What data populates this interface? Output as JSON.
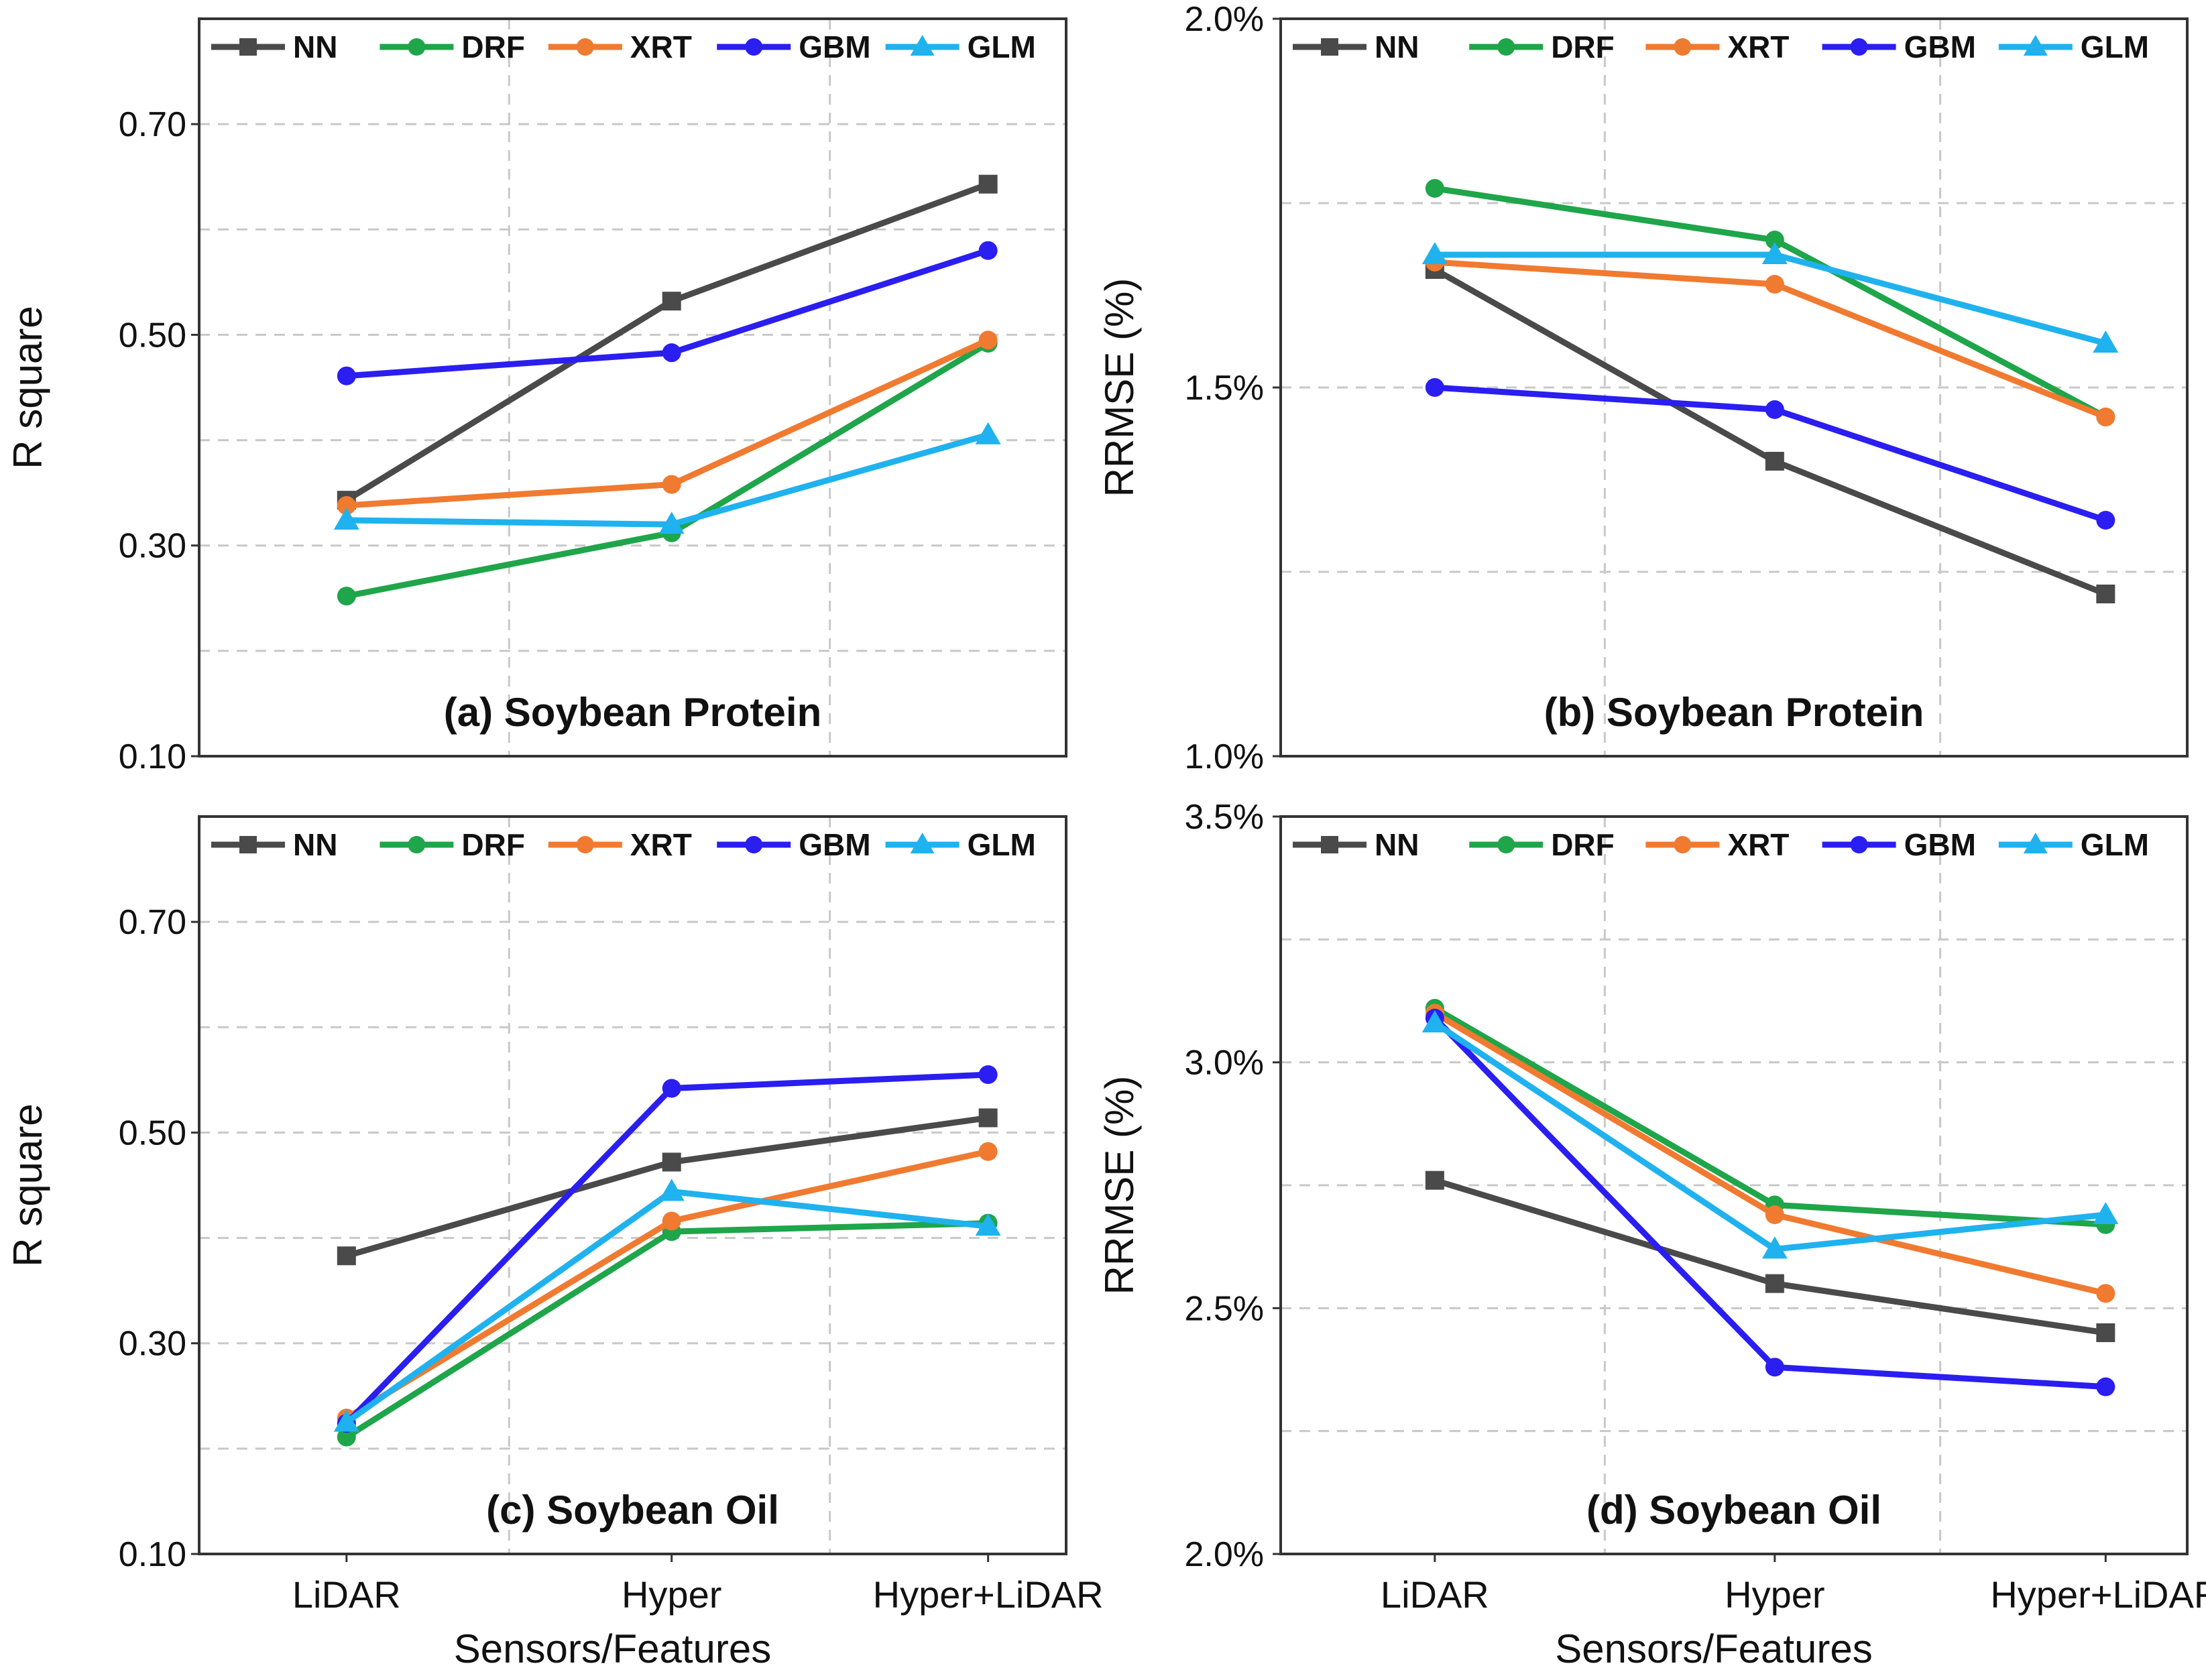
{
  "chart_data": [
    {
      "type": "line",
      "title": "(a) Soybean Protein",
      "xlabel": "",
      "ylabel": "R square",
      "categories": [
        "LiDAR",
        "Hyper",
        "Hyper+LiDAR"
      ],
      "ylim": [
        0.1,
        0.8
      ],
      "yticks": [
        "0.10",
        "0.30",
        "0.50",
        "0.70"
      ],
      "ytick_values": [
        0.1,
        0.3,
        0.5,
        0.7
      ],
      "grid": true,
      "legend": "top",
      "series": [
        {
          "name": "NN",
          "values": [
            0.343,
            0.532,
            0.643
          ]
        },
        {
          "name": "DRF",
          "values": [
            0.252,
            0.312,
            0.492
          ]
        },
        {
          "name": "XRT",
          "values": [
            0.338,
            0.358,
            0.495
          ]
        },
        {
          "name": "GBM",
          "values": [
            0.461,
            0.483,
            0.58
          ]
        },
        {
          "name": "GLM",
          "values": [
            0.324,
            0.32,
            0.405
          ]
        }
      ]
    },
    {
      "type": "line",
      "title": "(b) Soybean Protein",
      "xlabel": "",
      "ylabel": "RRMSE (%)",
      "categories": [
        "LiDAR",
        "Hyper",
        "Hyper+LiDAR"
      ],
      "ylim": [
        1.0,
        2.0
      ],
      "yticks": [
        "1.0%",
        "1.5%",
        "2.0%"
      ],
      "ytick_values": [
        1.0,
        1.5,
        2.0
      ],
      "grid": true,
      "legend": "top",
      "series": [
        {
          "name": "NN",
          "values": [
            1.66,
            1.4,
            1.22
          ]
        },
        {
          "name": "DRF",
          "values": [
            1.77,
            1.7,
            1.46
          ]
        },
        {
          "name": "XRT",
          "values": [
            1.67,
            1.64,
            1.46
          ]
        },
        {
          "name": "GBM",
          "values": [
            1.5,
            1.47,
            1.32
          ]
        },
        {
          "name": "GLM",
          "values": [
            1.68,
            1.68,
            1.56
          ]
        }
      ]
    },
    {
      "type": "line",
      "title": "(c) Soybean Oil",
      "xlabel": "Sensors/Features",
      "ylabel": "R square",
      "categories": [
        "LiDAR",
        "Hyper",
        "Hyper+LiDAR"
      ],
      "ylim": [
        0.1,
        0.8
      ],
      "yticks": [
        "0.10",
        "0.30",
        "0.50",
        "0.70"
      ],
      "ytick_values": [
        0.1,
        0.3,
        0.5,
        0.7
      ],
      "grid": true,
      "legend": "top",
      "series": [
        {
          "name": "NN",
          "values": [
            0.383,
            0.472,
            0.514
          ]
        },
        {
          "name": "DRF",
          "values": [
            0.211,
            0.406,
            0.414
          ]
        },
        {
          "name": "XRT",
          "values": [
            0.229,
            0.416,
            0.482
          ]
        },
        {
          "name": "GBM",
          "values": [
            0.224,
            0.542,
            0.555
          ]
        },
        {
          "name": "GLM",
          "values": [
            0.225,
            0.444,
            0.411
          ]
        }
      ]
    },
    {
      "type": "line",
      "title": "(d) Soybean Oil",
      "xlabel": "Sensors/Features",
      "ylabel": "RRMSE (%)",
      "categories": [
        "LiDAR",
        "Hyper",
        "Hyper+LiDAR"
      ],
      "ylim": [
        2.0,
        3.5
      ],
      "yticks": [
        "2.0%",
        "2.5%",
        "3.0%",
        "3.5%"
      ],
      "ytick_values": [
        2.0,
        2.5,
        3.0,
        3.5
      ],
      "grid": true,
      "legend": "top",
      "series": [
        {
          "name": "NN",
          "values": [
            2.76,
            2.55,
            2.45
          ]
        },
        {
          "name": "DRF",
          "values": [
            3.11,
            2.71,
            2.67
          ]
        },
        {
          "name": "XRT",
          "values": [
            3.1,
            2.69,
            2.53
          ]
        },
        {
          "name": "GBM",
          "values": [
            3.09,
            2.38,
            2.34
          ]
        },
        {
          "name": "GLM",
          "values": [
            3.08,
            2.62,
            2.69
          ]
        }
      ]
    }
  ],
  "styles": {
    "NN": {
      "color": "#4a4a4a",
      "marker": "square"
    },
    "DRF": {
      "color": "#1fa54a",
      "marker": "circle"
    },
    "XRT": {
      "color": "#f07a30",
      "marker": "circle"
    },
    "GBM": {
      "color": "#2a1ef0",
      "marker": "circle"
    },
    "GLM": {
      "color": "#1fb2ee",
      "marker": "triangle"
    }
  }
}
